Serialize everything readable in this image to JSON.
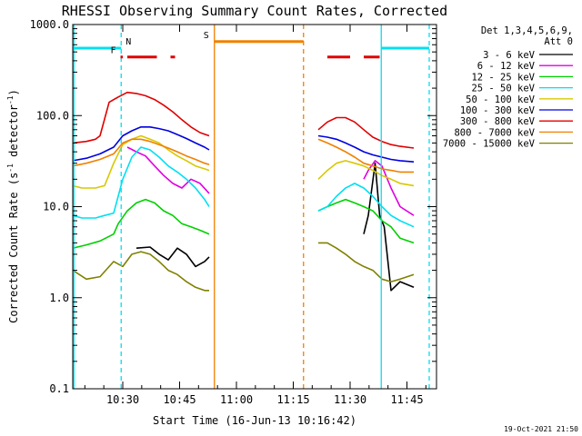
{
  "chart_data": {
    "type": "line",
    "title": "RHESSI Observing Summary Count Rates, Corrected",
    "xlabel": "Start Time (16-Jun-13 10:16:42)",
    "ylabel_main": "Corrected Count Rate (s",
    "ylabel_sup1": "-1",
    "ylabel_mid": " detector",
    "ylabel_sup2": "-1",
    "ylabel_end": ")",
    "yscale": "log",
    "ylim": [
      0.1,
      1000
    ],
    "xlim": [
      10.28,
      11.88
    ],
    "x_units": "hours (UT)",
    "x_ticks": [
      {
        "x": 10.5,
        "label": "10:30"
      },
      {
        "x": 10.75,
        "label": "10:45"
      },
      {
        "x": 11.0,
        "label": "11:00"
      },
      {
        "x": 11.25,
        "label": "11:15"
      },
      {
        "x": 11.5,
        "label": "11:30"
      },
      {
        "x": 11.75,
        "label": "11:45"
      }
    ],
    "y_ticks": [
      {
        "y": 0.1,
        "label": "0.1"
      },
      {
        "y": 1,
        "label": "1.0"
      },
      {
        "y": 10,
        "label": "10.0"
      },
      {
        "y": 100,
        "label": "100.0"
      },
      {
        "y": 1000,
        "label": "1000.0"
      }
    ],
    "legend_header": [
      "Det 1,3,4,5,6,9,",
      "Att 0"
    ],
    "legend_placement": "right",
    "series": [
      {
        "name": "3 - 6 keV",
        "color": "#000000",
        "segments": [
          [
            [
              10.56,
              3.5
            ],
            [
              10.62,
              3.6
            ],
            [
              10.66,
              3.0
            ],
            [
              10.7,
              2.6
            ],
            [
              10.74,
              3.5
            ],
            [
              10.78,
              3.0
            ],
            [
              10.82,
              2.2
            ],
            [
              10.86,
              2.5
            ],
            [
              10.88,
              2.8
            ]
          ],
          [
            [
              11.56,
              5
            ],
            [
              11.58,
              8
            ],
            [
              11.61,
              30
            ],
            [
              11.63,
              8
            ],
            [
              11.65,
              6
            ],
            [
              11.68,
              1.2
            ],
            [
              11.72,
              1.5
            ],
            [
              11.78,
              1.3
            ]
          ]
        ]
      },
      {
        "name": "6 - 12 keV",
        "color": "#e000e0",
        "segments": [
          [
            [
              10.52,
              45
            ],
            [
              10.56,
              40
            ],
            [
              10.6,
              36
            ],
            [
              10.64,
              28
            ],
            [
              10.68,
              22
            ],
            [
              10.72,
              18
            ],
            [
              10.76,
              16
            ],
            [
              10.8,
              20
            ],
            [
              10.84,
              18
            ],
            [
              10.88,
              14
            ]
          ],
          [
            [
              11.56,
              20
            ],
            [
              11.58,
              25
            ],
            [
              11.61,
              32
            ],
            [
              11.64,
              28
            ],
            [
              11.68,
              16
            ],
            [
              11.72,
              10
            ],
            [
              11.78,
              8
            ]
          ]
        ]
      },
      {
        "name": "12 - 25 keV",
        "color": "#00d000",
        "segments": [
          [
            [
              10.28,
              3.5
            ],
            [
              10.34,
              3.8
            ],
            [
              10.4,
              4.2
            ],
            [
              10.46,
              5.0
            ],
            [
              10.48,
              6.5
            ],
            [
              10.52,
              9
            ],
            [
              10.56,
              11
            ],
            [
              10.6,
              12
            ],
            [
              10.64,
              11
            ],
            [
              10.68,
              9
            ],
            [
              10.72,
              8
            ],
            [
              10.76,
              6.5
            ],
            [
              10.8,
              6
            ],
            [
              10.84,
              5.5
            ],
            [
              10.88,
              5
            ]
          ],
          [
            [
              11.36,
              9
            ],
            [
              11.4,
              10
            ],
            [
              11.44,
              11
            ],
            [
              11.48,
              12
            ],
            [
              11.52,
              11
            ],
            [
              11.56,
              10
            ],
            [
              11.6,
              9
            ],
            [
              11.64,
              7
            ],
            [
              11.68,
              6
            ],
            [
              11.72,
              4.5
            ],
            [
              11.78,
              4
            ]
          ]
        ]
      },
      {
        "name": "25 - 50 keV",
        "color": "#00e0f0",
        "segments": [
          [
            [
              10.28,
              8
            ],
            [
              10.32,
              7.5
            ],
            [
              10.38,
              7.5
            ],
            [
              10.42,
              8
            ],
            [
              10.46,
              8.5
            ],
            [
              10.5,
              20
            ],
            [
              10.54,
              35
            ],
            [
              10.58,
              45
            ],
            [
              10.62,
              42
            ],
            [
              10.66,
              35
            ],
            [
              10.7,
              28
            ],
            [
              10.74,
              24
            ],
            [
              10.78,
              20
            ],
            [
              10.82,
              16
            ],
            [
              10.86,
              12
            ],
            [
              10.88,
              10
            ]
          ],
          [
            [
              11.36,
              9
            ],
            [
              11.4,
              10
            ],
            [
              11.44,
              13
            ],
            [
              11.48,
              16
            ],
            [
              11.52,
              18
            ],
            [
              11.56,
              16
            ],
            [
              11.6,
              13
            ],
            [
              11.64,
              10
            ],
            [
              11.68,
              8
            ],
            [
              11.72,
              7
            ],
            [
              11.78,
              6
            ]
          ]
        ]
      },
      {
        "name": "50 - 100 keV",
        "color": "#d8c800",
        "segments": [
          [
            [
              10.28,
              17
            ],
            [
              10.32,
              16
            ],
            [
              10.38,
              16
            ],
            [
              10.42,
              17
            ],
            [
              10.46,
              30
            ],
            [
              10.5,
              48
            ],
            [
              10.54,
              55
            ],
            [
              10.58,
              60
            ],
            [
              10.62,
              55
            ],
            [
              10.66,
              50
            ],
            [
              10.7,
              42
            ],
            [
              10.74,
              36
            ],
            [
              10.78,
              32
            ],
            [
              10.82,
              28
            ],
            [
              10.86,
              26
            ],
            [
              10.88,
              25
            ]
          ],
          [
            [
              11.36,
              20
            ],
            [
              11.4,
              25
            ],
            [
              11.44,
              30
            ],
            [
              11.48,
              32
            ],
            [
              11.52,
              30
            ],
            [
              11.56,
              28
            ],
            [
              11.6,
              25
            ],
            [
              11.64,
              22
            ],
            [
              11.68,
              20
            ],
            [
              11.72,
              18
            ],
            [
              11.78,
              17
            ]
          ]
        ]
      },
      {
        "name": "100 - 300 keV",
        "color": "#0000e0",
        "segments": [
          [
            [
              10.28,
              32
            ],
            [
              10.34,
              34
            ],
            [
              10.4,
              38
            ],
            [
              10.46,
              45
            ],
            [
              10.5,
              60
            ],
            [
              10.54,
              68
            ],
            [
              10.58,
              75
            ],
            [
              10.62,
              75
            ],
            [
              10.66,
              72
            ],
            [
              10.7,
              68
            ],
            [
              10.74,
              62
            ],
            [
              10.78,
              56
            ],
            [
              10.82,
              50
            ],
            [
              10.86,
              45
            ],
            [
              10.88,
              42
            ]
          ],
          [
            [
              11.36,
              60
            ],
            [
              11.4,
              58
            ],
            [
              11.44,
              55
            ],
            [
              11.48,
              50
            ],
            [
              11.52,
              45
            ],
            [
              11.56,
              40
            ],
            [
              11.6,
              37
            ],
            [
              11.64,
              35
            ],
            [
              11.68,
              33
            ],
            [
              11.72,
              32
            ],
            [
              11.78,
              31
            ]
          ]
        ]
      },
      {
        "name": "300 - 800 keV",
        "color": "#e00000",
        "segments": [
          [
            [
              10.28,
              50
            ],
            [
              10.34,
              52
            ],
            [
              10.38,
              55
            ],
            [
              10.4,
              60
            ],
            [
              10.44,
              140
            ],
            [
              10.48,
              160
            ],
            [
              10.52,
              180
            ],
            [
              10.56,
              175
            ],
            [
              10.6,
              165
            ],
            [
              10.64,
              150
            ],
            [
              10.68,
              130
            ],
            [
              10.72,
              110
            ],
            [
              10.76,
              90
            ],
            [
              10.8,
              75
            ],
            [
              10.84,
              65
            ],
            [
              10.88,
              60
            ]
          ],
          [
            [
              11.36,
              70
            ],
            [
              11.4,
              85
            ],
            [
              11.44,
              95
            ],
            [
              11.48,
              95
            ],
            [
              11.52,
              85
            ],
            [
              11.56,
              70
            ],
            [
              11.6,
              58
            ],
            [
              11.64,
              52
            ],
            [
              11.68,
              48
            ],
            [
              11.72,
              46
            ],
            [
              11.78,
              44
            ]
          ]
        ]
      },
      {
        "name": "800 - 7000 keV",
        "color": "#f08000",
        "segments": [
          [
            [
              10.28,
              28
            ],
            [
              10.34,
              30
            ],
            [
              10.4,
              33
            ],
            [
              10.46,
              38
            ],
            [
              10.5,
              50
            ],
            [
              10.54,
              55
            ],
            [
              10.58,
              55
            ],
            [
              10.62,
              52
            ],
            [
              10.66,
              48
            ],
            [
              10.7,
              44
            ],
            [
              10.74,
              40
            ],
            [
              10.78,
              36
            ],
            [
              10.82,
              33
            ],
            [
              10.86,
              30
            ],
            [
              10.88,
              29
            ]
          ],
          [
            [
              11.36,
              55
            ],
            [
              11.4,
              50
            ],
            [
              11.44,
              45
            ],
            [
              11.48,
              40
            ],
            [
              11.52,
              35
            ],
            [
              11.56,
              30
            ],
            [
              11.6,
              28
            ],
            [
              11.64,
              26
            ],
            [
              11.68,
              25
            ],
            [
              11.72,
              24
            ],
            [
              11.78,
              24
            ]
          ]
        ]
      },
      {
        "name": "7000 - 15000 keV",
        "color": "#808000",
        "segments": [
          [
            [
              10.28,
              2
            ],
            [
              10.34,
              1.6
            ],
            [
              10.4,
              1.7
            ],
            [
              10.46,
              2.5
            ],
            [
              10.5,
              2.2
            ],
            [
              10.54,
              3.0
            ],
            [
              10.58,
              3.2
            ],
            [
              10.62,
              3.0
            ],
            [
              10.66,
              2.5
            ],
            [
              10.7,
              2.0
            ],
            [
              10.74,
              1.8
            ],
            [
              10.78,
              1.5
            ],
            [
              10.82,
              1.3
            ],
            [
              10.86,
              1.2
            ],
            [
              10.88,
              1.2
            ]
          ],
          [
            [
              11.36,
              4
            ],
            [
              11.4,
              4
            ],
            [
              11.44,
              3.5
            ],
            [
              11.48,
              3
            ],
            [
              11.52,
              2.5
            ],
            [
              11.56,
              2.2
            ],
            [
              11.6,
              2
            ],
            [
              11.64,
              1.6
            ],
            [
              11.68,
              1.5
            ],
            [
              11.72,
              1.6
            ],
            [
              11.78,
              1.8
            ]
          ]
        ]
      }
    ],
    "vertical_lines": [
      {
        "x": 10.285,
        "color": "#00e0f0",
        "style": "solid"
      },
      {
        "x": 10.493,
        "color": "#00e0f0",
        "style": "dashed"
      },
      {
        "x": 10.903,
        "color": "#f08000",
        "style": "solid"
      },
      {
        "x": 11.295,
        "color": "#f08000",
        "style": "dashed"
      },
      {
        "x": 11.637,
        "color": "#00e0f0",
        "style": "solid"
      },
      {
        "x": 11.848,
        "color": "#00e0f0",
        "style": "dashed"
      }
    ],
    "flag_bars": [
      {
        "label": "N",
        "color": "#00e0f0",
        "y": 550,
        "intervals": [
          [
            10.28,
            10.493
          ],
          [
            11.637,
            11.848
          ]
        ]
      },
      {
        "label": "S",
        "color": "#f08000",
        "y": 650,
        "intervals": [
          [
            10.903,
            11.295
          ]
        ]
      },
      {
        "label": "F",
        "color": "#e00000",
        "y": 440,
        "intervals": [
          [
            10.49,
            10.5
          ],
          [
            10.52,
            10.65
          ],
          [
            10.71,
            10.73
          ],
          [
            11.4,
            11.5
          ],
          [
            11.56,
            11.63
          ]
        ]
      }
    ]
  },
  "footer_stamp": "19-Oct-2021 21:50"
}
